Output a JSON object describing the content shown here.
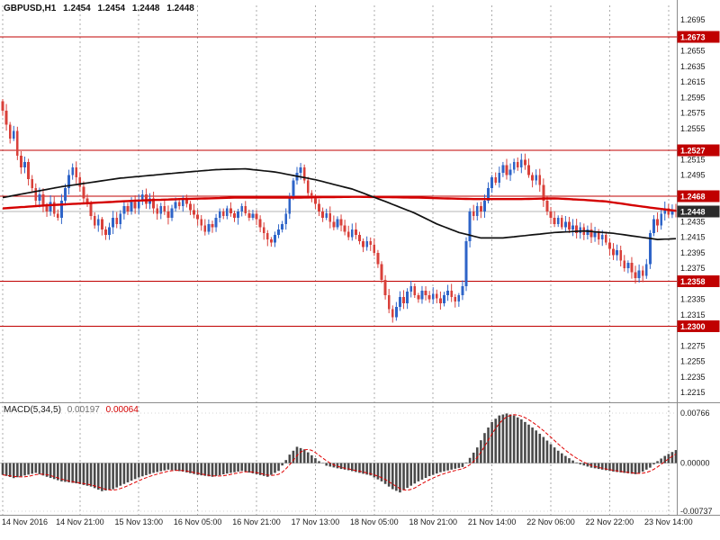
{
  "header": {
    "symbol_timeframe": "GBPUSD,H1",
    "open": "1.2454",
    "high": "1.2454",
    "low": "1.2448",
    "close": "1.2448"
  },
  "macd_panel": {
    "label": "MACD(5,34,5)",
    "macd_value": "0.00197",
    "signal_value": "0.00064"
  },
  "chart_data": {
    "type": "candlestick",
    "symbol": "GBPUSD",
    "timeframe": "H1",
    "title": "GBPUSD,H1 1.2454 1.2454 1.2448 1.2448",
    "price_axis": {
      "max": 1.2695,
      "min": 1.2215,
      "tick_step": 0.002,
      "ticks": [
        "1.2695",
        "1.2675",
        "1.2655",
        "1.2635",
        "1.2615",
        "1.2595",
        "1.2575",
        "1.2555",
        "1.2535",
        "1.2515",
        "1.2495",
        "1.2475",
        "1.2455",
        "1.2435",
        "1.2415",
        "1.2395",
        "1.2375",
        "1.2355",
        "1.2335",
        "1.2315",
        "1.2295",
        "1.2275",
        "1.2255",
        "1.2235",
        "1.2215"
      ]
    },
    "levels": [
      {
        "price": 1.2673,
        "label": "1.2673"
      },
      {
        "price": 1.2527,
        "label": "1.2527"
      },
      {
        "price": 1.2468,
        "label": "1.2468"
      },
      {
        "price": 1.2358,
        "label": "1.2358"
      },
      {
        "price": 1.23,
        "label": "1.2300"
      }
    ],
    "current_price": 1.2448,
    "current_price_label": "1.2448",
    "x_labels": [
      {
        "bar": 0,
        "label": "14 Nov 2016"
      },
      {
        "bar": 21,
        "label": "14 Nov 21:00"
      },
      {
        "bar": 37,
        "label": "15 Nov 13:00"
      },
      {
        "bar": 53,
        "label": "16 Nov 05:00"
      },
      {
        "bar": 69,
        "label": "16 Nov 21:00"
      },
      {
        "bar": 85,
        "label": "17 Nov 13:00"
      },
      {
        "bar": 101,
        "label": "18 Nov 05:00"
      },
      {
        "bar": 117,
        "label": "18 Nov 21:00"
      },
      {
        "bar": 133,
        "label": "21 Nov 14:00"
      },
      {
        "bar": 149,
        "label": "22 Nov 06:00"
      },
      {
        "bar": 165,
        "label": "22 Nov 22:00"
      },
      {
        "bar": 181,
        "label": "23 Nov 14:00"
      }
    ],
    "first_open": 1.259,
    "closes": [
      1.2578,
      1.256,
      1.2542,
      1.2552,
      1.252,
      1.2505,
      1.2512,
      1.249,
      1.2478,
      1.2462,
      1.247,
      1.2455,
      1.2448,
      1.246,
      1.2445,
      1.244,
      1.2462,
      1.2478,
      1.2495,
      1.2505,
      1.2492,
      1.248,
      1.2465,
      1.2458,
      1.2442,
      1.243,
      1.2438,
      1.2425,
      1.2418,
      1.2428,
      1.244,
      1.2432,
      1.2445,
      1.2455,
      1.2448,
      1.246,
      1.2452,
      1.2462,
      1.247,
      1.2458,
      1.2465,
      1.2452,
      1.2445,
      1.2455,
      1.2448,
      1.244,
      1.2452,
      1.246,
      1.2455,
      1.2465,
      1.2458,
      1.245,
      1.2444,
      1.2438,
      1.243,
      1.2422,
      1.2432,
      1.2428,
      1.244,
      1.2448,
      1.2442,
      1.2452,
      1.2446,
      1.244,
      1.2448,
      1.2455,
      1.2446,
      1.244,
      1.2445,
      1.2438,
      1.2428,
      1.242,
      1.2412,
      1.2408,
      1.2418,
      1.2425,
      1.2432,
      1.2445,
      1.2468,
      1.2488,
      1.2498,
      1.2505,
      1.2488,
      1.2472,
      1.2465,
      1.2458,
      1.2448,
      1.244,
      1.2446,
      1.2435,
      1.2428,
      1.2438,
      1.243,
      1.2422,
      1.2415,
      1.2425,
      1.2418,
      1.241,
      1.2402,
      1.241,
      1.2405,
      1.2395,
      1.238,
      1.236,
      1.234,
      1.2322,
      1.2312,
      1.2325,
      1.2338,
      1.233,
      1.2345,
      1.2352,
      1.234,
      1.2335,
      1.2346,
      1.234,
      1.2335,
      1.2342,
      1.2336,
      1.233,
      1.234,
      1.2346,
      1.2338,
      1.2332,
      1.234,
      1.2352,
      1.241,
      1.2448,
      1.2442,
      1.2455,
      1.2448,
      1.2462,
      1.2478,
      1.2492,
      1.2485,
      1.2498,
      1.2508,
      1.2495,
      1.2502,
      1.2512,
      1.2505,
      1.2515,
      1.2508,
      1.2495,
      1.2488,
      1.2495,
      1.2482,
      1.2462,
      1.2448,
      1.244,
      1.2432,
      1.244,
      1.2428,
      1.2435,
      1.2425,
      1.243,
      1.242,
      1.2428,
      1.2418,
      1.2425,
      1.2415,
      1.2422,
      1.2412,
      1.2418,
      1.2408,
      1.24,
      1.2392,
      1.2398,
      1.2385,
      1.2375,
      1.2382,
      1.237,
      1.2362,
      1.2372,
      1.2365,
      1.238,
      1.242,
      1.2438,
      1.243,
      1.2445,
      1.2452,
      1.2444,
      1.245,
      1.2448
    ],
    "ma_red_anchors": [
      [
        0,
        1.2452
      ],
      [
        12,
        1.2456
      ],
      [
        24,
        1.2459
      ],
      [
        36,
        1.2462
      ],
      [
        48,
        1.2464
      ],
      [
        64,
        1.2466
      ],
      [
        80,
        1.2466
      ],
      [
        96,
        1.2467
      ],
      [
        112,
        1.2466
      ],
      [
        128,
        1.2464
      ],
      [
        140,
        1.2464
      ],
      [
        150,
        1.2465
      ],
      [
        158,
        1.2463
      ],
      [
        164,
        1.2461
      ],
      [
        170,
        1.2457
      ],
      [
        176,
        1.2453
      ],
      [
        183,
        1.2449
      ]
    ],
    "ma_black_anchors": [
      [
        0,
        1.2466
      ],
      [
        16,
        1.248
      ],
      [
        32,
        1.2491
      ],
      [
        48,
        1.2498
      ],
      [
        58,
        1.2502
      ],
      [
        66,
        1.2503
      ],
      [
        74,
        1.2499
      ],
      [
        85,
        1.2489
      ],
      [
        95,
        1.2477
      ],
      [
        104,
        1.2461
      ],
      [
        112,
        1.2446
      ],
      [
        118,
        1.2432
      ],
      [
        124,
        1.2421
      ],
      [
        130,
        1.2414
      ],
      [
        136,
        1.2414
      ],
      [
        142,
        1.2417
      ],
      [
        150,
        1.2421
      ],
      [
        158,
        1.2423
      ],
      [
        166,
        1.242
      ],
      [
        172,
        1.2416
      ],
      [
        178,
        1.2412
      ],
      [
        183,
        1.2413
      ]
    ],
    "macd": {
      "label": "MACD(5,34,5)",
      "value": 0.00197,
      "signal_value": 0.00064,
      "signal_period": 5,
      "axis": {
        "max": 0.00766,
        "zero": 0.0,
        "min": -0.00737,
        "max_label": "0.00766",
        "zero_label": "0.00000",
        "min_label": "-0.00737"
      },
      "hist_anchors": [
        [
          0,
          -0.0018
        ],
        [
          3,
          -0.0023
        ],
        [
          6,
          -0.0019
        ],
        [
          9,
          -0.0015
        ],
        [
          12,
          -0.0021
        ],
        [
          16,
          -0.0028
        ],
        [
          20,
          -0.0031
        ],
        [
          24,
          -0.0036
        ],
        [
          27,
          -0.0043
        ],
        [
          30,
          -0.004
        ],
        [
          33,
          -0.0032
        ],
        [
          37,
          -0.0022
        ],
        [
          41,
          -0.0015
        ],
        [
          45,
          -0.001
        ],
        [
          49,
          -0.0013
        ],
        [
          53,
          -0.0018
        ],
        [
          57,
          -0.0021
        ],
        [
          61,
          -0.0016
        ],
        [
          65,
          -0.0012
        ],
        [
          69,
          -0.0017
        ],
        [
          72,
          -0.0021
        ],
        [
          75,
          -0.0012
        ],
        [
          78,
          0.0013
        ],
        [
          80,
          0.0025
        ],
        [
          82,
          0.0021
        ],
        [
          84,
          0.0012
        ],
        [
          86,
          0.0003
        ],
        [
          88,
          -0.0004
        ],
        [
          91,
          -0.0008
        ],
        [
          94,
          -0.0011
        ],
        [
          97,
          -0.0015
        ],
        [
          100,
          -0.0019
        ],
        [
          103,
          -0.0028
        ],
        [
          106,
          -0.004
        ],
        [
          108,
          -0.0045
        ],
        [
          110,
          -0.0038
        ],
        [
          113,
          -0.0028
        ],
        [
          116,
          -0.002
        ],
        [
          119,
          -0.0014
        ],
        [
          122,
          -0.001
        ],
        [
          125,
          -0.0006
        ],
        [
          127,
          0.0008
        ],
        [
          129,
          0.0024
        ],
        [
          131,
          0.0046
        ],
        [
          133,
          0.0063
        ],
        [
          135,
          0.0073
        ],
        [
          137,
          0.0076
        ],
        [
          139,
          0.0073
        ],
        [
          141,
          0.0067
        ],
        [
          143,
          0.0059
        ],
        [
          145,
          0.005
        ],
        [
          147,
          0.004
        ],
        [
          149,
          0.0029
        ],
        [
          151,
          0.0019
        ],
        [
          153,
          0.0011
        ],
        [
          155,
          0.0004
        ],
        [
          157,
          -0.0002
        ],
        [
          160,
          -0.0007
        ],
        [
          163,
          -0.001
        ],
        [
          166,
          -0.0013
        ],
        [
          169,
          -0.0015
        ],
        [
          172,
          -0.0017
        ],
        [
          174,
          -0.0013
        ],
        [
          176,
          -0.0007
        ],
        [
          178,
          0.0003
        ],
        [
          180,
          0.0011
        ],
        [
          182,
          0.0017
        ],
        [
          183,
          0.002
        ]
      ]
    },
    "colors": {
      "up": "#2e64c8",
      "down": "#d9403a",
      "ma_red": "#d40000",
      "ma_black": "#111111",
      "level": "#c00000",
      "level_tag_bg": "#c00000",
      "current_tag_bg": "#2b2b2b",
      "grid": "#ababab",
      "hist": "#4a4a4a",
      "signal": "#e00000",
      "separator": "#8c8c8c",
      "current_line": "#b4b4b4"
    }
  }
}
